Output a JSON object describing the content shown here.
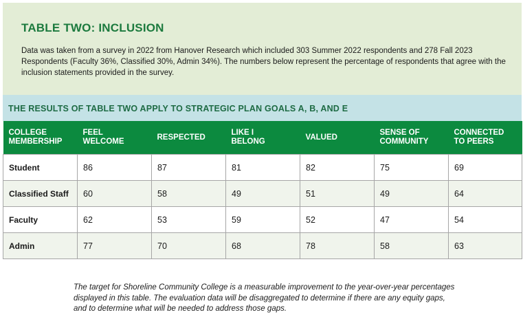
{
  "title": "TABLE TWO:  INCLUSION",
  "description": "Data was taken from a survey in 2022 from Hanover Research which included 303 Summer 2022 respondents and 278 Fall 2023 Respondents (Faculty 36%, Classified 30%, Admin 34%). The numbers below represent the percentage of respondents that agree with the inclusion statements provided in the survey.",
  "goals_banner": "THE RESULTS OF TABLE TWO APPLY TO STRATEGIC PLAN GOALS A, B, AND E",
  "table": {
    "headers": [
      {
        "line1": "COLLEGE",
        "line2": "MEMBERSHIP"
      },
      {
        "line1": "FEEL",
        "line2": "WELCOME"
      },
      {
        "line1": "RESPECTED",
        "line2": ""
      },
      {
        "line1": "LIKE I",
        "line2": "BELONG"
      },
      {
        "line1": "VALUED",
        "line2": ""
      },
      {
        "line1": "SENSE OF",
        "line2": "COMMUNITY"
      },
      {
        "line1": "CONNECTED",
        "line2": "TO PEERS"
      }
    ],
    "rows": [
      {
        "label": "Student",
        "values": [
          "86",
          "87",
          "81",
          "82",
          "75",
          "69"
        ]
      },
      {
        "label": "Classified Staff",
        "values": [
          "60",
          "58",
          "49",
          "51",
          "49",
          "64"
        ]
      },
      {
        "label": "Faculty",
        "values": [
          "62",
          "53",
          "59",
          "52",
          "47",
          "54"
        ]
      },
      {
        "label": "Admin",
        "values": [
          "77",
          "70",
          "68",
          "78",
          "58",
          "63"
        ]
      }
    ]
  },
  "note": "The target for Shoreline Community College is a measurable improvement to the year-over-year percentages displayed in this table. The evaluation data will be disaggregated to determine if there are any equity gaps, and to determine what will be needed to address those gaps.",
  "colors": {
    "green_header": "#0c8a3f",
    "title_green": "#1c7a3e",
    "intro_bg": "#e3edd6",
    "banner_bg": "#c4e2e6"
  }
}
